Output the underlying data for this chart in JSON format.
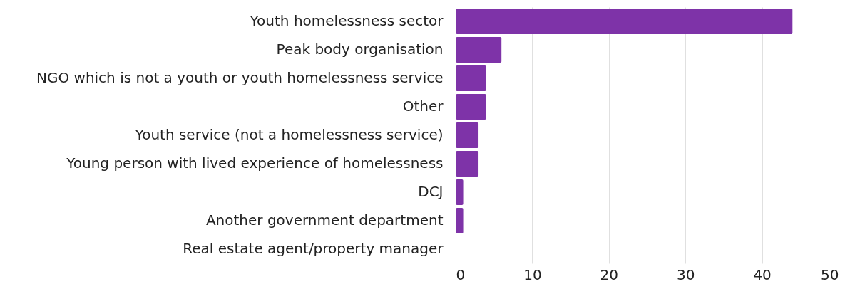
{
  "chart_data": {
    "type": "bar",
    "orientation": "horizontal",
    "categories": [
      "Youth homelessness sector",
      "Peak body organisation",
      "NGO which is not a youth or youth homelessness service",
      "Other",
      "Youth service (not a homelessness service)",
      "Young person with lived experience of homelessness",
      "DCJ",
      "Another government department",
      "Real estate agent/property manager"
    ],
    "values": [
      44,
      6,
      4,
      4,
      3,
      3,
      1,
      1,
      0
    ],
    "color": "#7e33a8",
    "xlim": [
      0,
      50
    ],
    "xticks": [
      0,
      10,
      20,
      30,
      40,
      50
    ],
    "grid": "x"
  }
}
